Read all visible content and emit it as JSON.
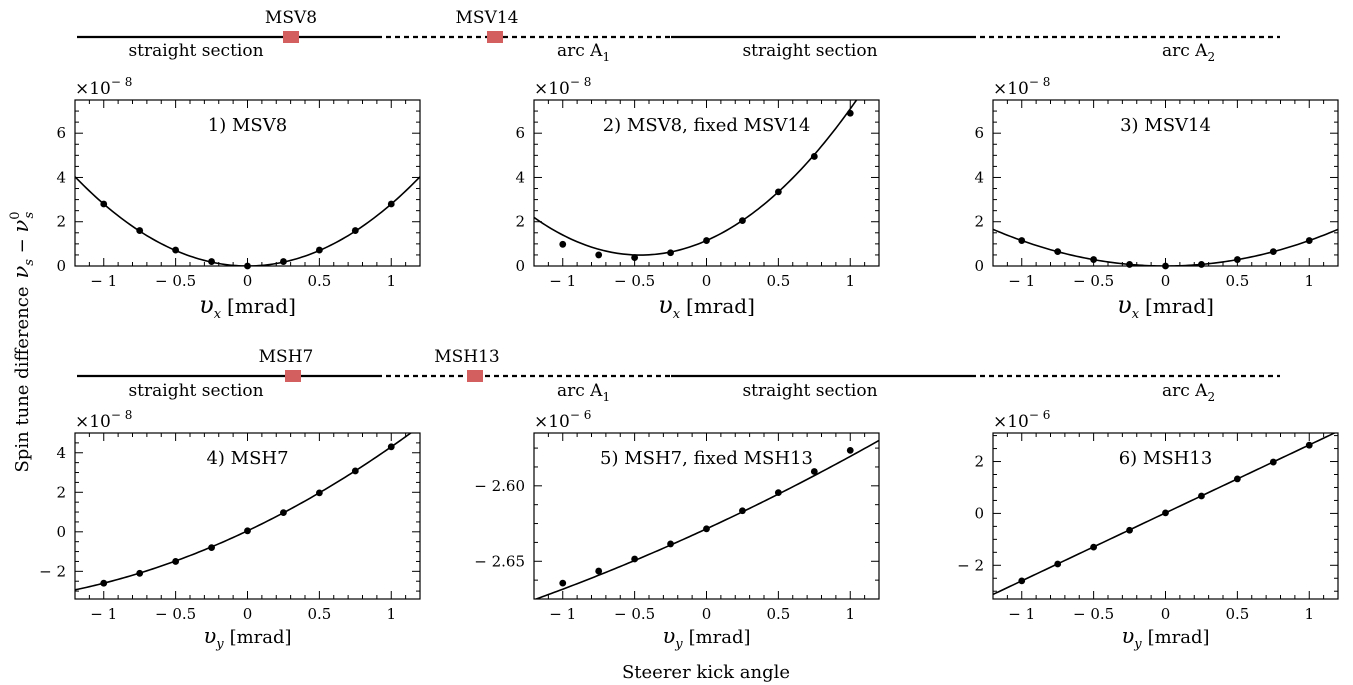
{
  "figure": {
    "ylabel_main": "Spin tune difference",
    "ylabel_symbol": "ν",
    "ylabel_sub_s": "s",
    "ylabel_sup_0": "0",
    "xlabel_main": "Steerer kick angle"
  },
  "ring_top": {
    "straight1": "straight section",
    "arc1": "arc A",
    "arc1_sub": "1",
    "straight2": "straight section",
    "arc2": "arc A",
    "arc2_sub": "2",
    "marker1": "MSV8",
    "marker2": "MSV14",
    "marker_color": "#d35f5f"
  },
  "ring_bottom": {
    "straight1": "straight section",
    "arc1": "arc A",
    "arc1_sub": "1",
    "straight2": "straight section",
    "arc2": "arc A",
    "arc2_sub": "2",
    "marker1": "MSH7",
    "marker2": "MSH13",
    "marker_color": "#d35f5f"
  },
  "chart_data": [
    {
      "type": "scatter",
      "fit": "parabola",
      "title": "1) MSV8",
      "xlabel_symbol": "υ",
      "xlabel_sub": "x",
      "xlabel_unit": "[mrad]",
      "exp_label": "×10",
      "exp_power": "− 8",
      "xlim": [
        -1.2,
        1.2
      ],
      "ylim": [
        0,
        7.5
      ],
      "xticks": [
        -1,
        -0.5,
        0,
        0.5,
        1
      ],
      "xtick_labels": [
        "− 1",
        "− 0.5",
        "0",
        "0.5",
        "1"
      ],
      "yticks": [
        0,
        2,
        4,
        6
      ],
      "ytick_labels": [
        "0",
        "2",
        "4",
        "6"
      ],
      "x": [
        -1,
        -0.75,
        -0.5,
        -0.25,
        0,
        0.25,
        0.5,
        0.75,
        1
      ],
      "y": [
        2.8,
        1.6,
        0.72,
        0.2,
        0.0,
        0.2,
        0.72,
        1.6,
        2.8
      ],
      "fit_coeffs": [
        2.8,
        0,
        0
      ]
    },
    {
      "type": "scatter",
      "fit": "parabola",
      "title": "2) MSV8, fixed MSV14",
      "xlabel_symbol": "υ",
      "xlabel_sub": "x",
      "xlabel_unit": "[mrad]",
      "exp_label": "×10",
      "exp_power": "− 8",
      "xlim": [
        -1.2,
        1.2
      ],
      "ylim": [
        0,
        7.5
      ],
      "xticks": [
        -1,
        -0.5,
        0,
        0.5,
        1
      ],
      "xtick_labels": [
        "− 1",
        "− 0.5",
        "0",
        "0.5",
        "1"
      ],
      "yticks": [
        0,
        2,
        4,
        6
      ],
      "ytick_labels": [
        "0",
        "2",
        "4",
        "6"
      ],
      "x": [
        -1,
        -0.75,
        -0.5,
        -0.25,
        0,
        0.25,
        0.5,
        0.75,
        1
      ],
      "y": [
        0.98,
        0.5,
        0.38,
        0.6,
        1.15,
        2.05,
        3.35,
        4.95,
        6.9
      ],
      "fit_coeffs": [
        3.1,
        2.85,
        1.15
      ]
    },
    {
      "type": "scatter",
      "fit": "parabola",
      "title": "3) MSV14",
      "xlabel_symbol": "υ",
      "xlabel_sub": "x",
      "xlabel_unit": "[mrad]",
      "exp_label": "×10",
      "exp_power": "− 8",
      "xlim": [
        -1.2,
        1.2
      ],
      "ylim": [
        0,
        7.5
      ],
      "xticks": [
        -1,
        -0.5,
        0,
        0.5,
        1
      ],
      "xtick_labels": [
        "− 1",
        "− 0.5",
        "0",
        "0.5",
        "1"
      ],
      "yticks": [
        0,
        2,
        4,
        6
      ],
      "ytick_labels": [
        "0",
        "2",
        "4",
        "6"
      ],
      "x": [
        -1,
        -0.75,
        -0.5,
        -0.25,
        0,
        0.25,
        0.5,
        0.75,
        1
      ],
      "y": [
        1.15,
        0.65,
        0.29,
        0.07,
        0.0,
        0.07,
        0.29,
        0.65,
        1.15
      ],
      "fit_coeffs": [
        1.15,
        0,
        0
      ]
    },
    {
      "type": "scatter",
      "fit": "parabola",
      "title": "4) MSH7",
      "xlabel_symbol": "υ",
      "xlabel_sub": "y",
      "xlabel_unit": "[mrad]",
      "exp_label": "×10",
      "exp_power": "− 8",
      "xlim": [
        -1.2,
        1.2
      ],
      "ylim": [
        -3.4,
        5
      ],
      "xticks": [
        -1,
        -0.5,
        0,
        0.5,
        1
      ],
      "xtick_labels": [
        "− 1",
        "− 0.5",
        "0",
        "0.5",
        "1"
      ],
      "yticks": [
        -2,
        0,
        2,
        4
      ],
      "ytick_labels": [
        "− 2",
        "0",
        "2",
        "4"
      ],
      "x": [
        -1,
        -0.75,
        -0.5,
        -0.25,
        0,
        0.25,
        0.5,
        0.75,
        1
      ],
      "y": [
        -2.6,
        -2.1,
        -1.5,
        -0.8,
        0.05,
        0.97,
        1.97,
        3.08,
        4.3
      ],
      "fit_coeffs": [
        0.8,
        3.45,
        0.05
      ]
    },
    {
      "type": "scatter",
      "fit": "parabola",
      "title": "5) MSH7, fixed MSH13",
      "xlabel_symbol": "υ",
      "xlabel_sub": "y",
      "xlabel_unit": "[mrad]",
      "exp_label": "×10",
      "exp_power": "− 6",
      "xlim": [
        -1.2,
        1.2
      ],
      "ylim": [
        -2.675,
        -2.565
      ],
      "xticks": [
        -1,
        -0.5,
        0,
        0.5,
        1
      ],
      "xtick_labels": [
        "− 1",
        "− 0.5",
        "0",
        "0.5",
        "1"
      ],
      "yticks": [
        -2.65,
        -2.6
      ],
      "ytick_labels": [
        "− 2.65",
        "− 2.60"
      ],
      "x": [
        -1,
        -0.75,
        -0.5,
        -0.25,
        0,
        0.25,
        0.5,
        0.75,
        1
      ],
      "y": [
        -2.6645,
        -2.6565,
        -2.6485,
        -2.6385,
        -2.6285,
        -2.6165,
        -2.6045,
        -2.5905,
        -2.5765
      ],
      "fit_coeffs": [
        0.004,
        0.044,
        -2.6285
      ]
    },
    {
      "type": "scatter",
      "fit": "parabola",
      "title": "6) MSH13",
      "xlabel_symbol": "υ",
      "xlabel_sub": "y",
      "xlabel_unit": "[mrad]",
      "exp_label": "×10",
      "exp_power": "− 6",
      "xlim": [
        -1.2,
        1.2
      ],
      "ylim": [
        -3.3,
        3.1
      ],
      "xticks": [
        -1,
        -0.5,
        0,
        0.5,
        1
      ],
      "xtick_labels": [
        "− 1",
        "− 0.5",
        "0",
        "0.5",
        "1"
      ],
      "yticks": [
        -2,
        0,
        2
      ],
      "ytick_labels": [
        "− 2",
        "0",
        "2"
      ],
      "x": [
        -1,
        -0.75,
        -0.5,
        -0.25,
        0,
        0.25,
        0.5,
        0.75,
        1
      ],
      "y": [
        -2.6,
        -1.95,
        -1.3,
        -0.65,
        0.02,
        0.67,
        1.33,
        1.98,
        2.63
      ],
      "fit_coeffs": [
        0,
        2.62,
        0.02
      ]
    }
  ]
}
